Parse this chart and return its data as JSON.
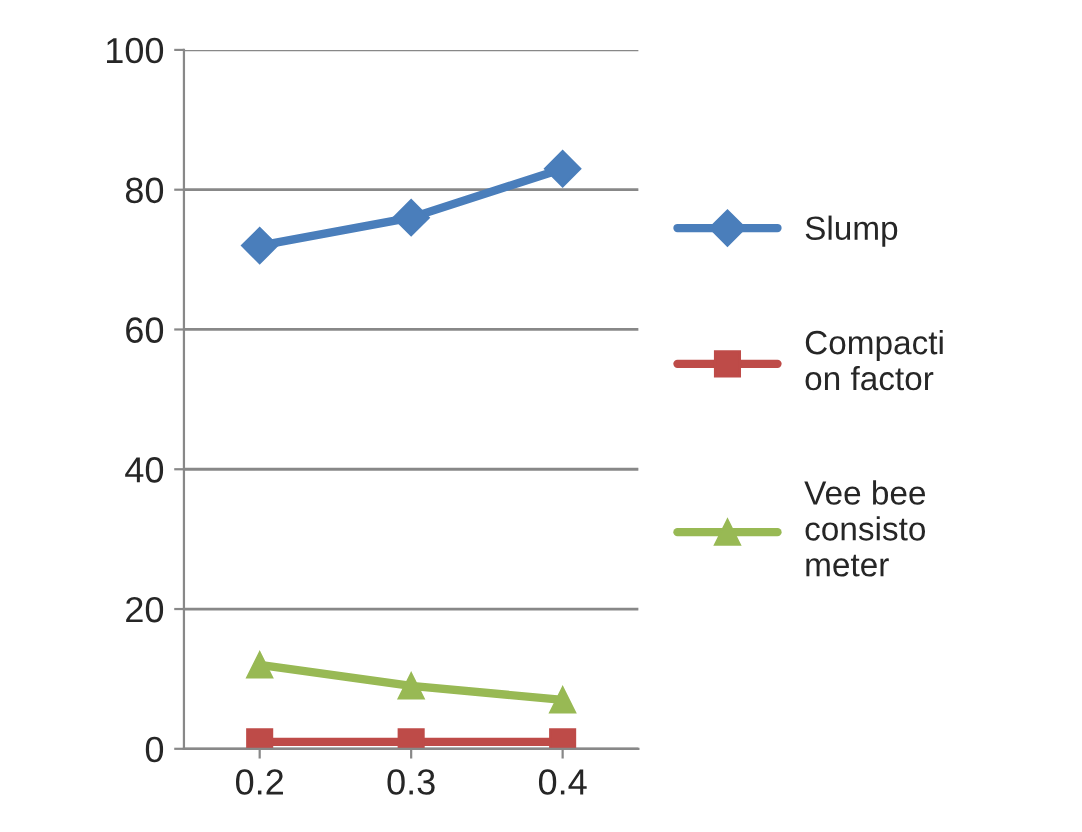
{
  "chart_data": {
    "type": "line",
    "categories": [
      "0.2",
      "0.3",
      "0.4"
    ],
    "series": [
      {
        "name": "Slump",
        "color": "#4a7ebb",
        "marker": "diamond",
        "values": [
          72,
          76,
          83
        ]
      },
      {
        "name": "Compaction factor",
        "color": "#be4b48",
        "marker": "square",
        "values": [
          1,
          1,
          1
        ]
      },
      {
        "name": "Vee bee consistometer",
        "color": "#98b954",
        "marker": "triangle",
        "values": [
          12,
          9,
          7
        ]
      }
    ],
    "ylim": [
      0,
      100
    ],
    "yticks": [
      0,
      20,
      40,
      60,
      80,
      100
    ],
    "grid": "y",
    "legend": "right"
  }
}
